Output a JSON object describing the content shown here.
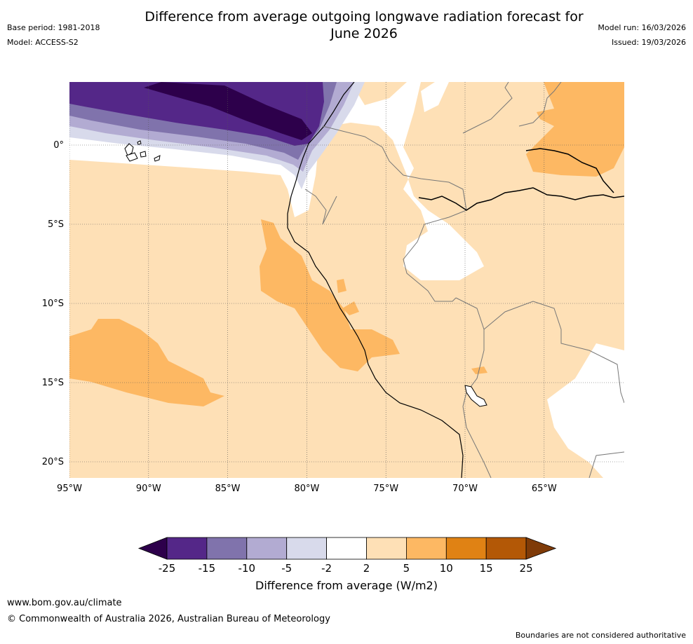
{
  "header": {
    "title_line1": "Difference from average outgoing longwave radiation forecast for",
    "title_line2": "June 2026",
    "base_period": "Base period: 1981-2018",
    "model": "Model: ACCESS-S2",
    "model_run": "Model run: 16/03/2026",
    "issued": "Issued: 19/03/2026"
  },
  "map": {
    "lat_ticks": [
      "0°",
      "5°S",
      "10°S",
      "15°S",
      "20°S"
    ],
    "lon_ticks": [
      "95°W",
      "90°W",
      "85°W",
      "80°W",
      "75°W",
      "70°W",
      "65°W"
    ],
    "gridlines": true
  },
  "colorbar": {
    "label": "Difference from average (W/m2)",
    "ticks": [
      "-25",
      "-15",
      "-10",
      "-5",
      "-2",
      "2",
      "5",
      "10",
      "15",
      "25"
    ],
    "colors": [
      "#2d004b",
      "#542788",
      "#8073ac",
      "#b2abd2",
      "#d8daeb",
      "#ffffff",
      "#fee0b6",
      "#fdb863",
      "#e08214",
      "#b35806",
      "#7f3b08"
    ]
  },
  "footer": {
    "url": "www.bom.gov.au/climate",
    "copyright": "© Commonwealth of Australia 2026, Australian Bureau of Meteorology",
    "note": "Boundaries are not considered authoritative"
  }
}
